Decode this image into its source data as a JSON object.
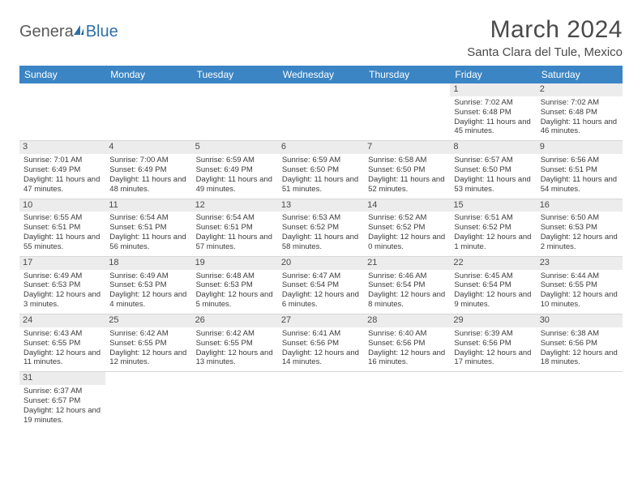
{
  "logo": {
    "text1": "Genera",
    "text2": "Blue"
  },
  "title": "March 2024",
  "location": "Santa Clara del Tule, Mexico",
  "day_headers": [
    "Sunday",
    "Monday",
    "Tuesday",
    "Wednesday",
    "Thursday",
    "Friday",
    "Saturday"
  ],
  "colors": {
    "header_bg": "#3b85c4",
    "header_text": "#ffffff",
    "daynum_bg": "#ececec",
    "text": "#3b3b3b",
    "logo_gray": "#5a5a5a",
    "logo_blue": "#2f6fa8"
  },
  "weeks": [
    [
      {
        "empty": true
      },
      {
        "empty": true
      },
      {
        "empty": true
      },
      {
        "empty": true
      },
      {
        "empty": true
      },
      {
        "day": "1",
        "sunrise": "Sunrise: 7:02 AM",
        "sunset": "Sunset: 6:48 PM",
        "daylight": "Daylight: 11 hours and 45 minutes."
      },
      {
        "day": "2",
        "sunrise": "Sunrise: 7:02 AM",
        "sunset": "Sunset: 6:48 PM",
        "daylight": "Daylight: 11 hours and 46 minutes."
      }
    ],
    [
      {
        "day": "3",
        "sunrise": "Sunrise: 7:01 AM",
        "sunset": "Sunset: 6:49 PM",
        "daylight": "Daylight: 11 hours and 47 minutes."
      },
      {
        "day": "4",
        "sunrise": "Sunrise: 7:00 AM",
        "sunset": "Sunset: 6:49 PM",
        "daylight": "Daylight: 11 hours and 48 minutes."
      },
      {
        "day": "5",
        "sunrise": "Sunrise: 6:59 AM",
        "sunset": "Sunset: 6:49 PM",
        "daylight": "Daylight: 11 hours and 49 minutes."
      },
      {
        "day": "6",
        "sunrise": "Sunrise: 6:59 AM",
        "sunset": "Sunset: 6:50 PM",
        "daylight": "Daylight: 11 hours and 51 minutes."
      },
      {
        "day": "7",
        "sunrise": "Sunrise: 6:58 AM",
        "sunset": "Sunset: 6:50 PM",
        "daylight": "Daylight: 11 hours and 52 minutes."
      },
      {
        "day": "8",
        "sunrise": "Sunrise: 6:57 AM",
        "sunset": "Sunset: 6:50 PM",
        "daylight": "Daylight: 11 hours and 53 minutes."
      },
      {
        "day": "9",
        "sunrise": "Sunrise: 6:56 AM",
        "sunset": "Sunset: 6:51 PM",
        "daylight": "Daylight: 11 hours and 54 minutes."
      }
    ],
    [
      {
        "day": "10",
        "sunrise": "Sunrise: 6:55 AM",
        "sunset": "Sunset: 6:51 PM",
        "daylight": "Daylight: 11 hours and 55 minutes."
      },
      {
        "day": "11",
        "sunrise": "Sunrise: 6:54 AM",
        "sunset": "Sunset: 6:51 PM",
        "daylight": "Daylight: 11 hours and 56 minutes."
      },
      {
        "day": "12",
        "sunrise": "Sunrise: 6:54 AM",
        "sunset": "Sunset: 6:51 PM",
        "daylight": "Daylight: 11 hours and 57 minutes."
      },
      {
        "day": "13",
        "sunrise": "Sunrise: 6:53 AM",
        "sunset": "Sunset: 6:52 PM",
        "daylight": "Daylight: 11 hours and 58 minutes."
      },
      {
        "day": "14",
        "sunrise": "Sunrise: 6:52 AM",
        "sunset": "Sunset: 6:52 PM",
        "daylight": "Daylight: 12 hours and 0 minutes."
      },
      {
        "day": "15",
        "sunrise": "Sunrise: 6:51 AM",
        "sunset": "Sunset: 6:52 PM",
        "daylight": "Daylight: 12 hours and 1 minute."
      },
      {
        "day": "16",
        "sunrise": "Sunrise: 6:50 AM",
        "sunset": "Sunset: 6:53 PM",
        "daylight": "Daylight: 12 hours and 2 minutes."
      }
    ],
    [
      {
        "day": "17",
        "sunrise": "Sunrise: 6:49 AM",
        "sunset": "Sunset: 6:53 PM",
        "daylight": "Daylight: 12 hours and 3 minutes."
      },
      {
        "day": "18",
        "sunrise": "Sunrise: 6:49 AM",
        "sunset": "Sunset: 6:53 PM",
        "daylight": "Daylight: 12 hours and 4 minutes."
      },
      {
        "day": "19",
        "sunrise": "Sunrise: 6:48 AM",
        "sunset": "Sunset: 6:53 PM",
        "daylight": "Daylight: 12 hours and 5 minutes."
      },
      {
        "day": "20",
        "sunrise": "Sunrise: 6:47 AM",
        "sunset": "Sunset: 6:54 PM",
        "daylight": "Daylight: 12 hours and 6 minutes."
      },
      {
        "day": "21",
        "sunrise": "Sunrise: 6:46 AM",
        "sunset": "Sunset: 6:54 PM",
        "daylight": "Daylight: 12 hours and 8 minutes."
      },
      {
        "day": "22",
        "sunrise": "Sunrise: 6:45 AM",
        "sunset": "Sunset: 6:54 PM",
        "daylight": "Daylight: 12 hours and 9 minutes."
      },
      {
        "day": "23",
        "sunrise": "Sunrise: 6:44 AM",
        "sunset": "Sunset: 6:55 PM",
        "daylight": "Daylight: 12 hours and 10 minutes."
      }
    ],
    [
      {
        "day": "24",
        "sunrise": "Sunrise: 6:43 AM",
        "sunset": "Sunset: 6:55 PM",
        "daylight": "Daylight: 12 hours and 11 minutes."
      },
      {
        "day": "25",
        "sunrise": "Sunrise: 6:42 AM",
        "sunset": "Sunset: 6:55 PM",
        "daylight": "Daylight: 12 hours and 12 minutes."
      },
      {
        "day": "26",
        "sunrise": "Sunrise: 6:42 AM",
        "sunset": "Sunset: 6:55 PM",
        "daylight": "Daylight: 12 hours and 13 minutes."
      },
      {
        "day": "27",
        "sunrise": "Sunrise: 6:41 AM",
        "sunset": "Sunset: 6:56 PM",
        "daylight": "Daylight: 12 hours and 14 minutes."
      },
      {
        "day": "28",
        "sunrise": "Sunrise: 6:40 AM",
        "sunset": "Sunset: 6:56 PM",
        "daylight": "Daylight: 12 hours and 16 minutes."
      },
      {
        "day": "29",
        "sunrise": "Sunrise: 6:39 AM",
        "sunset": "Sunset: 6:56 PM",
        "daylight": "Daylight: 12 hours and 17 minutes."
      },
      {
        "day": "30",
        "sunrise": "Sunrise: 6:38 AM",
        "sunset": "Sunset: 6:56 PM",
        "daylight": "Daylight: 12 hours and 18 minutes."
      }
    ],
    [
      {
        "day": "31",
        "sunrise": "Sunrise: 6:37 AM",
        "sunset": "Sunset: 6:57 PM",
        "daylight": "Daylight: 12 hours and 19 minutes."
      },
      {
        "empty": true
      },
      {
        "empty": true
      },
      {
        "empty": true
      },
      {
        "empty": true
      },
      {
        "empty": true
      },
      {
        "empty": true
      }
    ]
  ]
}
